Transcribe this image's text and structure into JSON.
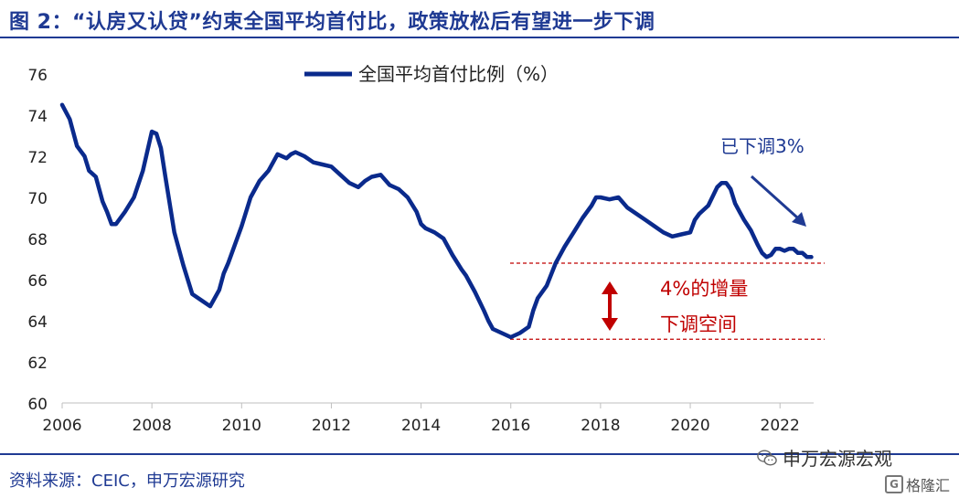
{
  "figure": {
    "title": "图 2：“认房又认贷”约束全国平均首付比，政策放松后有望进一步下调",
    "source": "资料来源：CEIC，申万宏源研究",
    "watermark": "申万宏源宏观",
    "brand": "格隆汇",
    "brand_logo_letter": "G"
  },
  "chart_data": {
    "type": "line",
    "title": "",
    "xlabel": "",
    "ylabel": "",
    "xlim": [
      2006,
      2022.75
    ],
    "ylim": [
      60,
      76
    ],
    "yticks": [
      60,
      62,
      64,
      66,
      68,
      70,
      72,
      74,
      76
    ],
    "xticks": [
      2006,
      2008,
      2010,
      2012,
      2014,
      2016,
      2018,
      2020,
      2022
    ],
    "grid": false,
    "legend_position": "top-center",
    "colors": {
      "series": "#0a2a8c",
      "annotation": "#c00000",
      "arrow": "#1f3a93",
      "axis": "#bfbfbf"
    },
    "series": [
      {
        "name": "全国平均首付比例（%）",
        "x": [
          2006.0,
          2006.17,
          2006.33,
          2006.5,
          2006.6,
          2006.75,
          2006.9,
          2007.0,
          2007.1,
          2007.2,
          2007.4,
          2007.6,
          2007.8,
          2008.0,
          2008.1,
          2008.2,
          2008.3,
          2008.5,
          2008.7,
          2008.9,
          2009.1,
          2009.3,
          2009.5,
          2009.6,
          2009.7,
          2009.9,
          2010.0,
          2010.2,
          2010.4,
          2010.6,
          2010.8,
          2011.0,
          2011.1,
          2011.2,
          2011.4,
          2011.6,
          2011.8,
          2012.0,
          2012.2,
          2012.4,
          2012.6,
          2012.75,
          2012.9,
          2013.1,
          2013.3,
          2013.5,
          2013.7,
          2013.9,
          2014.0,
          2014.1,
          2014.3,
          2014.5,
          2014.7,
          2014.9,
          2015.0,
          2015.2,
          2015.4,
          2015.5,
          2015.6,
          2015.8,
          2016.0,
          2016.2,
          2016.4,
          2016.5,
          2016.6,
          2016.8,
          2017.0,
          2017.2,
          2017.4,
          2017.6,
          2017.8,
          2017.9,
          2018.0,
          2018.2,
          2018.4,
          2018.6,
          2018.8,
          2019.0,
          2019.2,
          2019.4,
          2019.6,
          2019.8,
          2020.0,
          2020.1,
          2020.2,
          2020.4,
          2020.6,
          2020.7,
          2020.8,
          2020.9,
          2021.0,
          2021.1,
          2021.2,
          2021.35,
          2021.5,
          2021.6,
          2021.7,
          2021.8,
          2021.9,
          2022.0,
          2022.1,
          2022.2,
          2022.3,
          2022.4,
          2022.5,
          2022.55,
          2022.6,
          2022.7
        ],
        "y": [
          74.5,
          73.8,
          72.5,
          72.0,
          71.3,
          71.0,
          69.8,
          69.3,
          68.7,
          68.7,
          69.3,
          70.0,
          71.3,
          73.2,
          73.1,
          72.4,
          71.0,
          68.3,
          66.7,
          65.3,
          65.0,
          64.7,
          65.5,
          66.3,
          66.8,
          68.0,
          68.6,
          70.0,
          70.8,
          71.3,
          72.1,
          71.9,
          72.1,
          72.2,
          72.0,
          71.7,
          71.6,
          71.5,
          71.1,
          70.7,
          70.5,
          70.8,
          71.0,
          71.1,
          70.6,
          70.4,
          70.0,
          69.3,
          68.7,
          68.5,
          68.3,
          68.0,
          67.2,
          66.5,
          66.2,
          65.4,
          64.5,
          64.0,
          63.6,
          63.4,
          63.2,
          63.4,
          63.7,
          64.5,
          65.1,
          65.7,
          66.8,
          67.6,
          68.3,
          69.0,
          69.6,
          70.0,
          70.0,
          69.9,
          70.0,
          69.5,
          69.2,
          68.9,
          68.6,
          68.3,
          68.1,
          68.2,
          68.3,
          68.9,
          69.2,
          69.6,
          70.5,
          70.7,
          70.7,
          70.4,
          69.7,
          69.3,
          68.9,
          68.4,
          67.7,
          67.3,
          67.1,
          67.2,
          67.5,
          67.5,
          67.4,
          67.5,
          67.5,
          67.3,
          67.3,
          67.2,
          67.1,
          67.1
        ]
      }
    ],
    "annotations": {
      "decline_label": "已下调3%",
      "gap_label_line1": "4%的增量",
      "gap_label_line2": "下调空间",
      "upper_reference": 66.8,
      "lower_reference": 63.1
    }
  }
}
